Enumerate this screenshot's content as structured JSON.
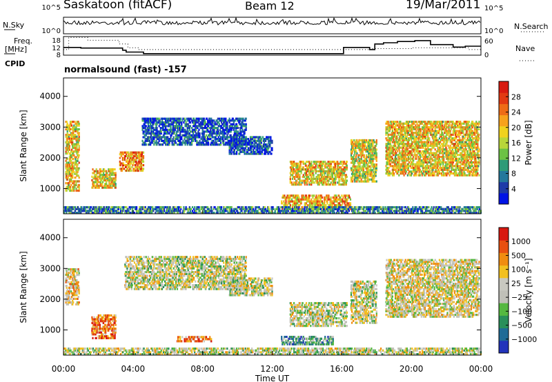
{
  "header": {
    "station": "Saskatoon (fitACF)",
    "beam": "Beam 12",
    "date": "19/Mar/2011"
  },
  "strip_labels": {
    "nsky": "N.Sky",
    "nsearch": "N.Search",
    "freq_line1": "Freq.",
    "freq_line2": "[MHz]",
    "nave": "Nave",
    "cpid": "CPID",
    "program": "normalsound (fast) -157"
  },
  "chart_data": [
    {
      "type": "line",
      "name": "noise-strip",
      "series": [
        {
          "name": "N.Sky"
        },
        {
          "name": "N.Search"
        }
      ],
      "yticks": [
        "10^5",
        "10^0"
      ],
      "yticks_right": [
        "10^5",
        "10^0"
      ]
    },
    {
      "type": "line",
      "name": "frequency-strip",
      "series": [
        {
          "name": "Freq.",
          "points": [
            [
              0.0,
              11
            ],
            [
              0.3,
              11
            ],
            [
              0.3,
              17.5
            ],
            [
              1.4,
              17.5
            ],
            [
              1.4,
              16
            ],
            [
              3.2,
              16
            ],
            [
              3.2,
              14
            ],
            [
              3.7,
              14
            ],
            [
              3.7,
              12
            ],
            [
              4.3,
              12
            ],
            [
              4.3,
              11
            ],
            [
              17.6,
              11
            ],
            [
              17.6,
              11.5
            ],
            [
              20.0,
              11.5
            ],
            [
              20.0,
              12
            ],
            [
              23.3,
              12
            ],
            [
              23.3,
              11
            ],
            [
              24.0,
              11
            ]
          ]
        },
        {
          "name": "Nave",
          "points": [
            [
              0.0,
              25
            ],
            [
              1.0,
              25
            ],
            [
              1.0,
              23
            ],
            [
              3.4,
              23
            ],
            [
              3.4,
              16
            ],
            [
              3.6,
              16
            ],
            [
              3.6,
              10
            ],
            [
              4.6,
              10
            ],
            [
              4.6,
              5
            ],
            [
              16.1,
              5
            ],
            [
              16.1,
              25
            ],
            [
              17.6,
              25
            ],
            [
              17.6,
              18
            ],
            [
              17.9,
              18
            ],
            [
              17.9,
              36
            ],
            [
              18.4,
              36
            ],
            [
              18.4,
              40
            ],
            [
              19.2,
              40
            ],
            [
              19.2,
              44
            ],
            [
              20.2,
              44
            ],
            [
              20.2,
              47
            ],
            [
              21.1,
              47
            ],
            [
              21.1,
              34
            ],
            [
              22.4,
              34
            ],
            [
              22.4,
              26
            ],
            [
              23.1,
              26
            ],
            [
              23.1,
              29
            ],
            [
              24.0,
              29
            ]
          ]
        }
      ],
      "yticks": [
        "18",
        "12",
        "8"
      ],
      "yticks_right": [
        "60",
        "0"
      ]
    },
    {
      "type": "heatmap",
      "name": "power",
      "xlabel": "Time UT",
      "ylabel": "Slant Range [km]",
      "xlim": [
        0,
        24
      ],
      "ylim": [
        180,
        4600
      ],
      "xticks": [
        "00:00",
        "04:00",
        "08:00",
        "12:00",
        "16:00",
        "20:00",
        "00:00"
      ],
      "yticks": [
        1000,
        2000,
        3000,
        4000
      ],
      "colorbar_label": "Power [dB]",
      "colorbar_ticks": [
        "28",
        "24",
        "20",
        "16",
        "12",
        "8",
        "4"
      ],
      "colorbar_colors": [
        "#0014e6",
        "#1e3ba8",
        "#24789c",
        "#2e9b78",
        "#6cc244",
        "#b8d63a",
        "#f0d21e",
        "#f7a21c",
        "#ee6c16",
        "#e23a12",
        "#d81a10"
      ],
      "echo_regions": [
        {
          "t0": 0.1,
          "t1": 0.9,
          "r0": 900,
          "r1": 3200,
          "level": 0.6
        },
        {
          "t0": 1.6,
          "t1": 3.0,
          "r0": 1000,
          "r1": 1650,
          "level": 0.6
        },
        {
          "t0": 3.2,
          "t1": 4.6,
          "r0": 1550,
          "r1": 2200,
          "level": 0.7
        },
        {
          "t0": 4.5,
          "t1": 10.5,
          "r0": 2400,
          "r1": 3300,
          "level": 0.15
        },
        {
          "t0": 9.5,
          "t1": 12.0,
          "r0": 2100,
          "r1": 2700,
          "level": 0.15
        },
        {
          "t0": 13.0,
          "t1": 16.3,
          "r0": 1100,
          "r1": 1900,
          "level": 0.6
        },
        {
          "t0": 12.5,
          "t1": 16.5,
          "r0": 300,
          "r1": 800,
          "level": 0.65
        },
        {
          "t0": 16.5,
          "t1": 18.0,
          "r0": 1200,
          "r1": 2600,
          "level": 0.55
        },
        {
          "t0": 18.5,
          "t1": 23.9,
          "r0": 1400,
          "r1": 3200,
          "level": 0.6
        },
        {
          "t0": 0.0,
          "t1": 24.0,
          "r0": 180,
          "r1": 420,
          "level": 0.25
        }
      ]
    },
    {
      "type": "heatmap",
      "name": "velocity",
      "xlabel": "Time UT",
      "ylabel": "Slant Range [km]",
      "xlim": [
        0,
        24
      ],
      "ylim": [
        180,
        4600
      ],
      "xticks": [
        "00:00",
        "04:00",
        "08:00",
        "12:00",
        "16:00",
        "20:00",
        "00:00"
      ],
      "yticks": [
        1000,
        2000,
        3000,
        4000
      ],
      "colorbar_label": "Velocity [m s⁻¹]",
      "colorbar_ticks": [
        "1000",
        "500",
        "100",
        "25",
        "−25",
        "−100",
        "−500",
        "−1000"
      ],
      "colorbar_colors": [
        "#2233bb",
        "#1f6b96",
        "#2a8f5a",
        "#55b840",
        "#c0c0b8",
        "#c8c8c0",
        "#f2c020",
        "#f08c10",
        "#e85010",
        "#d81810"
      ],
      "echo_regions": [
        {
          "t0": 0.1,
          "t1": 0.9,
          "r0": 1800,
          "r1": 3000,
          "level": 0.6
        },
        {
          "t0": 1.6,
          "t1": 3.0,
          "r0": 700,
          "r1": 1500,
          "level": 0.8
        },
        {
          "t0": 3.5,
          "t1": 10.5,
          "r0": 2300,
          "r1": 3400,
          "level": 0.5
        },
        {
          "t0": 9.5,
          "t1": 12.0,
          "r0": 2100,
          "r1": 2700,
          "level": 0.5
        },
        {
          "t0": 13.0,
          "t1": 16.3,
          "r0": 1100,
          "r1": 1900,
          "level": 0.5
        },
        {
          "t0": 12.5,
          "t1": 15.5,
          "r0": 500,
          "r1": 800,
          "level": 0.3
        },
        {
          "t0": 6.5,
          "t1": 8.5,
          "r0": 600,
          "r1": 800,
          "level": 0.75
        },
        {
          "t0": 16.5,
          "t1": 18.0,
          "r0": 1200,
          "r1": 2600,
          "level": 0.5
        },
        {
          "t0": 18.5,
          "t1": 23.9,
          "r0": 1400,
          "r1": 3300,
          "level": 0.55
        },
        {
          "t0": 0.0,
          "t1": 24.0,
          "r0": 180,
          "r1": 420,
          "level": 0.5
        }
      ]
    }
  ]
}
